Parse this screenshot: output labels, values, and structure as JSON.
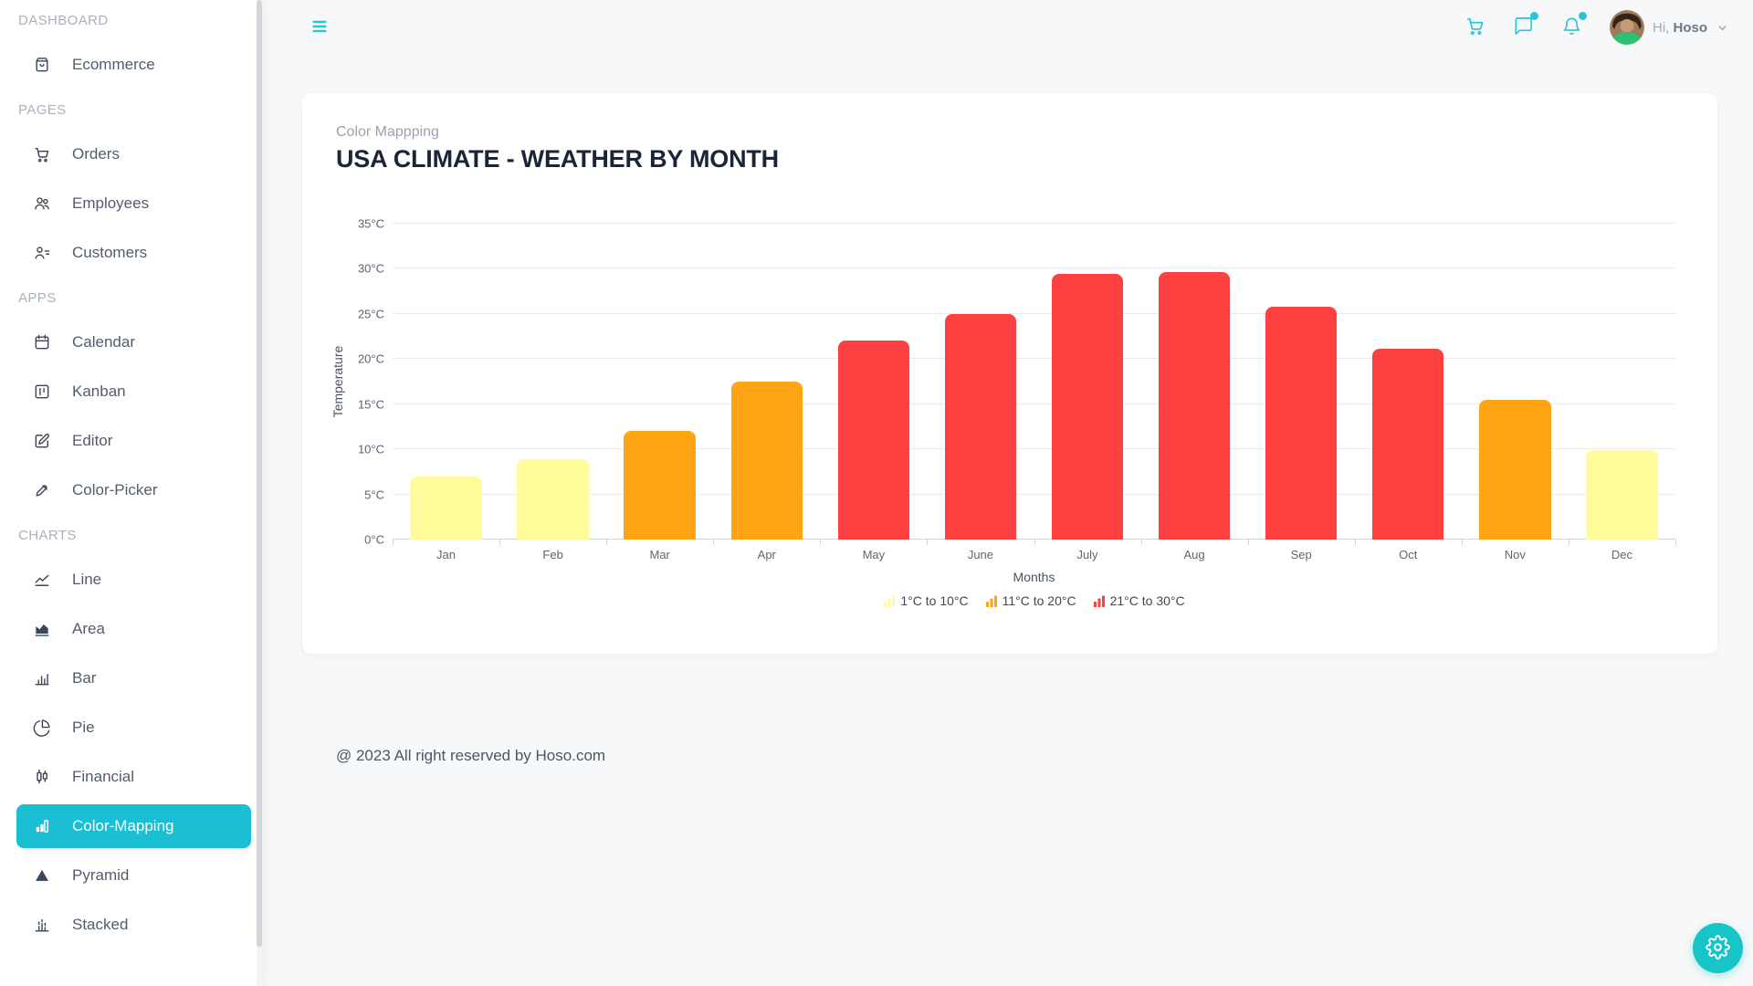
{
  "colors": {
    "accent": "#1ABFD3",
    "header_icon": "#26C6DA",
    "fab": "#17C4C8",
    "range_yellow": "#FFFC99",
    "range_orange": "#FFA412",
    "range_red": "#FD4141"
  },
  "sidebar": {
    "sections": [
      {
        "title": "DASHBOARD",
        "items": [
          {
            "label": "Ecommerce",
            "icon": "shopping-bag-icon",
            "active": false
          }
        ]
      },
      {
        "title": "PAGES",
        "items": [
          {
            "label": "Orders",
            "icon": "cart-icon",
            "active": false
          },
          {
            "label": "Employees",
            "icon": "users-icon",
            "active": false
          },
          {
            "label": "Customers",
            "icon": "user-list-icon",
            "active": false
          }
        ]
      },
      {
        "title": "APPS",
        "items": [
          {
            "label": "Calendar",
            "icon": "calendar-icon",
            "active": false
          },
          {
            "label": "Kanban",
            "icon": "kanban-icon",
            "active": false
          },
          {
            "label": "Editor",
            "icon": "editor-icon",
            "active": false
          },
          {
            "label": "Color-Picker",
            "icon": "color-picker-icon",
            "active": false
          }
        ]
      },
      {
        "title": "CHARTS",
        "items": [
          {
            "label": "Line",
            "icon": "line-chart-icon",
            "active": false
          },
          {
            "label": "Area",
            "icon": "area-chart-icon",
            "active": false
          },
          {
            "label": "Bar",
            "icon": "bar-chart-icon",
            "active": false
          },
          {
            "label": "Pie",
            "icon": "pie-chart-icon",
            "active": false
          },
          {
            "label": "Financial",
            "icon": "financial-chart-icon",
            "active": false
          },
          {
            "label": "Color-Mapping",
            "icon": "color-mapping-icon",
            "active": true
          },
          {
            "label": "Pyramid",
            "icon": "pyramid-chart-icon",
            "active": false
          },
          {
            "label": "Stacked",
            "icon": "stacked-chart-icon",
            "active": false
          }
        ]
      }
    ]
  },
  "header": {
    "greeting_prefix": "Hi,",
    "username": "Hoso",
    "icons": [
      "menu-icon",
      "cart-icon",
      "chat-icon",
      "bell-icon",
      "avatar",
      "chevron-down-icon"
    ]
  },
  "card": {
    "subtitle": "Color Mappping",
    "title": "USA CLIMATE - WEATHER BY MONTH"
  },
  "chart_data": {
    "type": "bar",
    "title": "USA CLIMATE - WEATHER BY MONTH",
    "categories": [
      "Jan",
      "Feb",
      "Mar",
      "Apr",
      "May",
      "June",
      "July",
      "Aug",
      "Sep",
      "Oct",
      "Nov",
      "Dec"
    ],
    "values": [
      7,
      8.9,
      12,
      17.5,
      22.1,
      25,
      29.4,
      29.6,
      25.8,
      21.1,
      15.5,
      9.9
    ],
    "xlabel": "Months",
    "ylabel": "Temperature",
    "ylim": [
      0,
      35
    ],
    "ytick_step": 5,
    "ytick_suffix": "°C",
    "yticks": [
      "0°C",
      "5°C",
      "10°C",
      "15°C",
      "20°C",
      "25°C",
      "30°C",
      "35°C"
    ],
    "grid": true,
    "legend_position": "bottom",
    "color_ranges": [
      {
        "label": "1°C to 10°C",
        "from": 1,
        "to": 10,
        "color": "#FFFC99"
      },
      {
        "label": "11°C to 20°C",
        "from": 11,
        "to": 20,
        "color": "#FFA412"
      },
      {
        "label": "21°C to 30°C",
        "from": 21,
        "to": 30,
        "color": "#FD4141"
      }
    ]
  },
  "footer": {
    "copyright": "@ 2023 All right reserved by Hoso.com"
  }
}
